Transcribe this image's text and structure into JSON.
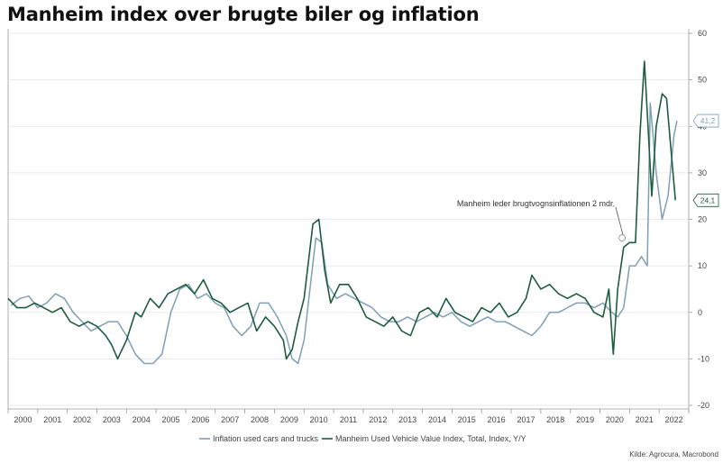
{
  "title": "Manheim index over brugte biler og inflation",
  "source": "Kilde: Agrocura, Macrobond",
  "annotation": "Manheim leder brugtvognsinflationen 2 mdr.",
  "chart_data": {
    "type": "line",
    "title": "Manheim index over brugte biler og inflation",
    "y_axis_side": "right",
    "ylim": [
      -20,
      60
    ],
    "yticks": [
      -20,
      -10,
      0,
      10,
      20,
      30,
      40,
      50,
      60
    ],
    "xlim": [
      1999.5,
      2022.5
    ],
    "xticks": [
      "2000",
      "2001",
      "2002",
      "2003",
      "2004",
      "2005",
      "2006",
      "2007",
      "2008",
      "2009",
      "2010",
      "2011",
      "2012",
      "2013",
      "2014",
      "2015",
      "2016",
      "2017",
      "2018",
      "2019",
      "2020",
      "2021",
      "2022"
    ],
    "grid": "horizontal",
    "legend_position": "bottom",
    "series": [
      {
        "name": "Inflation used cars and trucks",
        "color": "#7f9fb3",
        "end_label": "41,2",
        "x": [
          1999.6,
          1999.9,
          2000.2,
          2000.5,
          2000.8,
          2001.1,
          2001.4,
          2001.7,
          2002.0,
          2002.3,
          2002.6,
          2002.9,
          2003.2,
          2003.5,
          2003.8,
          2004.1,
          2004.4,
          2004.7,
          2005.0,
          2005.3,
          2005.6,
          2005.9,
          2006.2,
          2006.5,
          2006.8,
          2007.1,
          2007.4,
          2007.7,
          2008.0,
          2008.3,
          2008.6,
          2008.9,
          2009.1,
          2009.3,
          2009.5,
          2009.7,
          2009.9,
          2010.1,
          2010.3,
          2010.6,
          2010.9,
          2011.2,
          2011.5,
          2011.8,
          2012.1,
          2012.4,
          2012.7,
          2013.0,
          2013.3,
          2013.6,
          2013.9,
          2014.2,
          2014.5,
          2014.8,
          2015.1,
          2015.4,
          2015.7,
          2016.0,
          2016.3,
          2016.6,
          2016.9,
          2017.2,
          2017.5,
          2017.8,
          2018.1,
          2018.4,
          2018.7,
          2019.0,
          2019.3,
          2019.6,
          2019.9,
          2020.1,
          2020.3,
          2020.5,
          2020.7,
          2020.9,
          2021.1,
          2021.2,
          2021.4,
          2021.6,
          2021.8,
          2022.0,
          2022.1
        ],
        "values": [
          1.5,
          3,
          3.5,
          1,
          2,
          4,
          3,
          0,
          -2,
          -4,
          -3,
          -2,
          -2,
          -5,
          -9,
          -11,
          -11,
          -9,
          0,
          5,
          6,
          3,
          4,
          2,
          1,
          -3,
          -5,
          -3,
          2,
          2,
          -1,
          -5,
          -10,
          -11,
          -6,
          5,
          16,
          15,
          6,
          3,
          4,
          3,
          2,
          1,
          -1,
          -2,
          -2,
          -1,
          -2,
          -1,
          0,
          -1,
          0,
          -2,
          -3,
          -2,
          -1,
          -2,
          -2,
          -3,
          -4,
          -5,
          -3,
          0,
          0,
          1,
          2,
          2,
          1,
          2,
          0,
          -1,
          1,
          10,
          10,
          12,
          10,
          45,
          30,
          20,
          25,
          38,
          41.2
        ]
      },
      {
        "name": "Manheim Used Vehicle Value Index, Total, Index, Y/Y",
        "color": "#1d5c3e",
        "end_label": "24,1",
        "x": [
          1999.5,
          1999.8,
          2000.1,
          2000.4,
          2000.7,
          2001.0,
          2001.3,
          2001.6,
          2001.9,
          2002.2,
          2002.5,
          2002.8,
          2003.0,
          2003.2,
          2003.5,
          2003.8,
          2004.0,
          2004.3,
          2004.6,
          2004.9,
          2005.2,
          2005.5,
          2005.8,
          2006.1,
          2006.4,
          2006.7,
          2007.0,
          2007.3,
          2007.6,
          2007.9,
          2008.2,
          2008.5,
          2008.8,
          2008.9,
          2009.1,
          2009.3,
          2009.5,
          2009.8,
          2010.0,
          2010.2,
          2010.4,
          2010.7,
          2011.0,
          2011.3,
          2011.6,
          2011.9,
          2012.2,
          2012.5,
          2012.8,
          2013.1,
          2013.4,
          2013.7,
          2014.0,
          2014.3,
          2014.6,
          2014.9,
          2015.2,
          2015.5,
          2015.8,
          2016.1,
          2016.4,
          2016.7,
          2017.0,
          2017.2,
          2017.5,
          2017.8,
          2018.1,
          2018.4,
          2018.7,
          2019.0,
          2019.3,
          2019.6,
          2019.8,
          2019.95,
          2020.1,
          2020.3,
          2020.5,
          2020.7,
          2020.85,
          2021.0,
          2021.1,
          2021.25,
          2021.4,
          2021.6,
          2021.75,
          2021.9,
          2022.05
        ],
        "values": [
          3,
          1,
          1,
          2,
          1,
          0,
          1,
          -2,
          -3,
          -2,
          -3,
          -5,
          -7,
          -10,
          -6,
          0,
          -1,
          3,
          1,
          4,
          5,
          6,
          4,
          7,
          3,
          2,
          0,
          1,
          2,
          -4,
          -1,
          -3,
          -6,
          -10,
          -8,
          -2,
          3,
          19,
          20,
          9,
          2,
          6,
          6,
          3,
          -1,
          -2,
          -3,
          -1,
          -4,
          -5,
          0,
          1,
          -1,
          3,
          0,
          -1,
          -2,
          1,
          0,
          2,
          -1,
          0,
          3,
          8,
          5,
          6,
          4,
          3,
          4,
          3,
          0,
          -1,
          5,
          -9,
          5,
          14,
          15,
          15,
          38,
          54,
          43,
          25,
          40,
          47,
          46,
          35,
          24.1
        ]
      }
    ]
  }
}
